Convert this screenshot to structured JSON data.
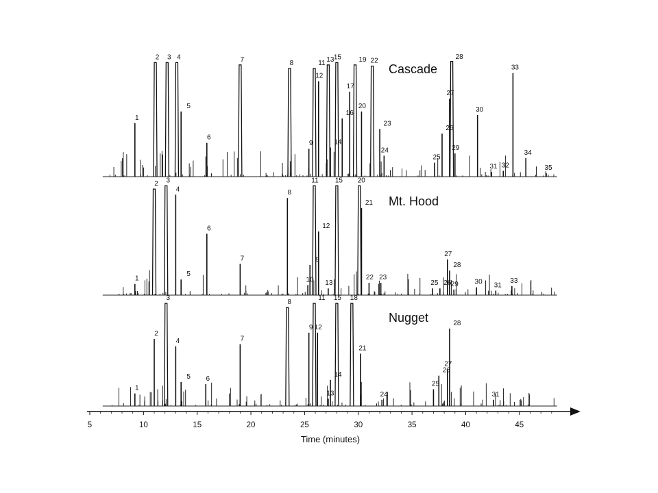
{
  "chart_data": {
    "type": "line",
    "xlabel": "Time (minutes)",
    "ylabel": "",
    "xlim": [
      5,
      49
    ],
    "xticks": [
      5,
      10,
      15,
      20,
      25,
      30,
      35,
      40,
      45
    ],
    "grid": false,
    "series": [
      {
        "name": "Cascade",
        "peaks": [
          {
            "label": "1",
            "t": 9.2,
            "h": 0.46
          },
          {
            "label": "2",
            "t": 11.1,
            "h": 0.98
          },
          {
            "label": "3",
            "t": 12.2,
            "h": 0.98
          },
          {
            "label": "4",
            "t": 13.1,
            "h": 0.98
          },
          {
            "label": "5",
            "t": 13.5,
            "h": 0.56
          },
          {
            "label": "6",
            "t": 15.9,
            "h": 0.29
          },
          {
            "label": "7",
            "t": 19.0,
            "h": 0.96
          },
          {
            "label": "8",
            "t": 23.6,
            "h": 0.93
          },
          {
            "label": "9",
            "t": 25.4,
            "h": 0.24
          },
          {
            "label": "11",
            "t": 25.9,
            "h": 0.93
          },
          {
            "label": "12",
            "t": 26.3,
            "h": 0.82
          },
          {
            "label": "13",
            "t": 27.2,
            "h": 0.96
          },
          {
            "label": "14",
            "t": 27.4,
            "h": 0.25
          },
          {
            "label": "15",
            "t": 28.0,
            "h": 0.98
          },
          {
            "label": "16",
            "t": 28.5,
            "h": 0.5
          },
          {
            "label": "17",
            "t": 29.2,
            "h": 0.73
          },
          {
            "label": "19",
            "t": 29.7,
            "h": 0.96
          },
          {
            "label": "20",
            "t": 30.3,
            "h": 0.56
          },
          {
            "label": "22",
            "t": 31.3,
            "h": 0.95
          },
          {
            "label": "23",
            "t": 32.0,
            "h": 0.41
          },
          {
            "label": "24",
            "t": 32.4,
            "h": 0.18
          },
          {
            "label": "25",
            "t": 37.1,
            "h": 0.12
          },
          {
            "label": "26",
            "t": 37.8,
            "h": 0.37
          },
          {
            "label": "27",
            "t": 38.5,
            "h": 0.67
          },
          {
            "label": "28",
            "t": 38.7,
            "h": 0.99
          },
          {
            "label": "29",
            "t": 39.0,
            "h": 0.2
          },
          {
            "label": "30",
            "t": 41.1,
            "h": 0.53
          },
          {
            "label": "31",
            "t": 42.4,
            "h": 0.04
          },
          {
            "label": "32",
            "t": 43.5,
            "h": 0.05
          },
          {
            "label": "33",
            "t": 44.4,
            "h": 0.89
          },
          {
            "label": "34",
            "t": 45.6,
            "h": 0.16
          },
          {
            "label": "35",
            "t": 47.5,
            "h": 0.03
          }
        ]
      },
      {
        "name": "Mt. Hood",
        "peaks": [
          {
            "label": "1",
            "t": 9.2,
            "h": 0.1
          },
          {
            "label": "2",
            "t": 11.0,
            "h": 0.95
          },
          {
            "label": "3",
            "t": 12.1,
            "h": 0.98
          },
          {
            "label": "4",
            "t": 13.0,
            "h": 0.9
          },
          {
            "label": "5",
            "t": 13.5,
            "h": 0.14
          },
          {
            "label": "6",
            "t": 15.9,
            "h": 0.55
          },
          {
            "label": "7",
            "t": 19.0,
            "h": 0.28
          },
          {
            "label": "8",
            "t": 23.4,
            "h": 0.87
          },
          {
            "label": "9",
            "t": 25.5,
            "h": 0.27
          },
          {
            "label": "10",
            "t": 25.3,
            "h": 0.09
          },
          {
            "label": "11",
            "t": 25.9,
            "h": 0.98
          },
          {
            "label": "12",
            "t": 26.3,
            "h": 0.57
          },
          {
            "label": "13",
            "t": 27.2,
            "h": 0.06
          },
          {
            "label": "15",
            "t": 28.0,
            "h": 0.98
          },
          {
            "label": "20",
            "t": 30.1,
            "h": 0.98
          },
          {
            "label": "21",
            "t": 30.3,
            "h": 0.78
          },
          {
            "label": "22",
            "t": 31.0,
            "h": 0.11
          },
          {
            "label": "23",
            "t": 32.1,
            "h": 0.11
          },
          {
            "label": "25",
            "t": 36.9,
            "h": 0.06
          },
          {
            "label": "26",
            "t": 37.6,
            "h": 0.06
          },
          {
            "label": "27",
            "t": 38.3,
            "h": 0.32
          },
          {
            "label": "28",
            "t": 38.5,
            "h": 0.22
          },
          {
            "label": "29",
            "t": 38.9,
            "h": 0.05
          },
          {
            "label": "30",
            "t": 41.0,
            "h": 0.07
          },
          {
            "label": "31",
            "t": 42.8,
            "h": 0.04
          },
          {
            "label": "33",
            "t": 44.3,
            "h": 0.08
          }
        ]
      },
      {
        "name": "Nugget",
        "peaks": [
          {
            "label": "1",
            "t": 9.2,
            "h": 0.12
          },
          {
            "label": "2",
            "t": 11.0,
            "h": 0.64
          },
          {
            "label": "3",
            "t": 12.1,
            "h": 0.98
          },
          {
            "label": "4",
            "t": 13.0,
            "h": 0.57
          },
          {
            "label": "5",
            "t": 13.5,
            "h": 0.23
          },
          {
            "label": "6",
            "t": 15.8,
            "h": 0.21
          },
          {
            "label": "7",
            "t": 19.0,
            "h": 0.59
          },
          {
            "label": "8",
            "t": 23.4,
            "h": 0.94
          },
          {
            "label": "9",
            "t": 25.4,
            "h": 0.7
          },
          {
            "label": "11",
            "t": 25.9,
            "h": 0.98
          },
          {
            "label": "12",
            "t": 26.2,
            "h": 0.7
          },
          {
            "label": "13",
            "t": 27.2,
            "h": 0.07
          },
          {
            "label": "14",
            "t": 27.4,
            "h": 0.25
          },
          {
            "label": "15",
            "t": 28.0,
            "h": 0.98
          },
          {
            "label": "18",
            "t": 29.4,
            "h": 0.98
          },
          {
            "label": "21",
            "t": 30.2,
            "h": 0.5
          },
          {
            "label": "24",
            "t": 32.2,
            "h": 0.06
          },
          {
            "label": "25",
            "t": 37.0,
            "h": 0.16
          },
          {
            "label": "26",
            "t": 37.5,
            "h": 0.29
          },
          {
            "label": "27",
            "t": 38.3,
            "h": 0.35
          },
          {
            "label": "28",
            "t": 38.5,
            "h": 0.74
          },
          {
            "label": "31",
            "t": 42.6,
            "h": 0.06
          }
        ]
      }
    ]
  }
}
